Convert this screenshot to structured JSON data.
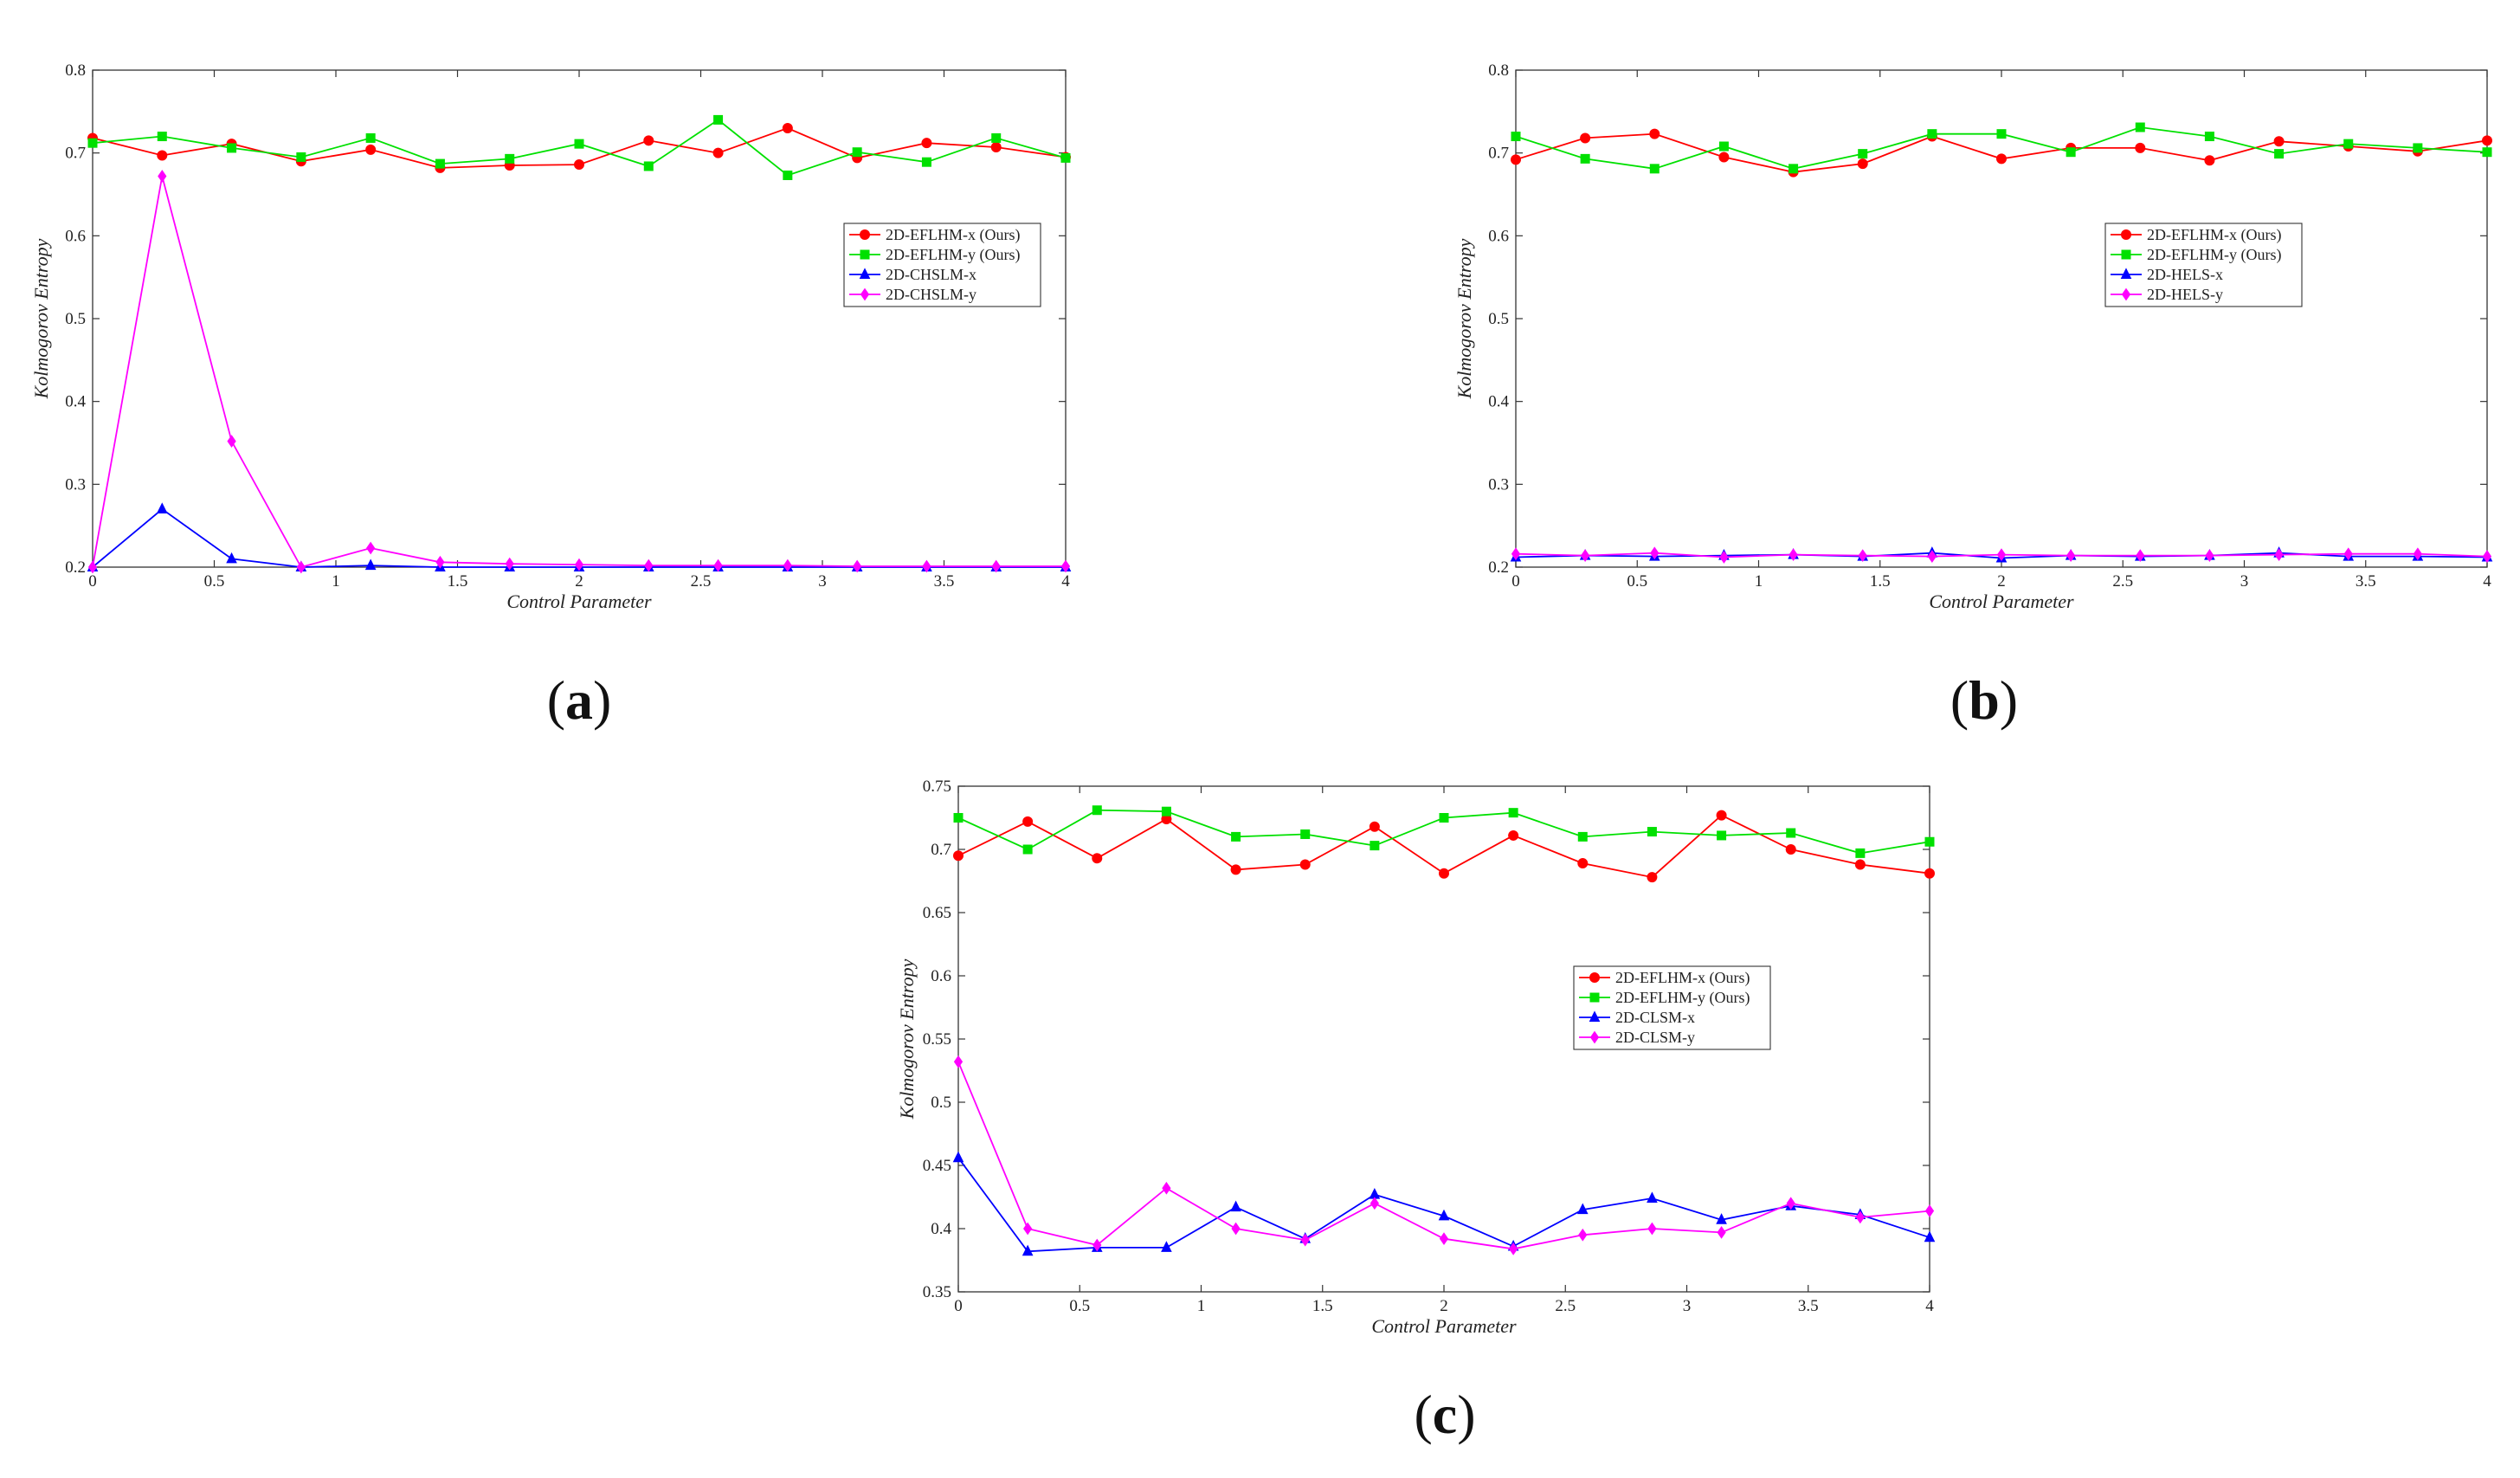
{
  "chart_data": [
    {
      "type": "line",
      "panel": "a",
      "caption_letter": "a",
      "xlabel": "Control Parameter",
      "ylabel": "Kolmogorov Entropy",
      "xlim": [
        0,
        4
      ],
      "ylim": [
        0.2,
        0.8
      ],
      "xticks": [
        0,
        0.5,
        1,
        1.5,
        2,
        2.5,
        3,
        3.5,
        4
      ],
      "xtick_labels": [
        "0",
        "0.5",
        "1",
        "1.5",
        "2",
        "2.5",
        "3",
        "3.5",
        "4"
      ],
      "yticks": [
        0.2,
        0.3,
        0.4,
        0.5,
        0.6,
        0.7,
        0.8
      ],
      "ytick_labels": [
        "0.2",
        "0.3",
        "0.4",
        "0.5",
        "0.6",
        "0.7",
        "0.8"
      ],
      "legend_position": "center-right",
      "x": [
        0,
        0.2857,
        0.5714,
        0.8571,
        1.1429,
        1.4286,
        1.7143,
        2,
        2.2857,
        2.5714,
        2.8571,
        3.1429,
        3.4286,
        3.7143,
        4
      ],
      "series": [
        {
          "name": "2D-EFLHM-x (Ours)",
          "color": "#ff0000",
          "marker": "circle",
          "values": [
            0.718,
            0.697,
            0.711,
            0.69,
            0.704,
            0.682,
            0.685,
            0.686,
            0.715,
            0.7,
            0.73,
            0.694,
            0.712,
            0.707,
            0.695
          ]
        },
        {
          "name": "2D-EFLHM-y (Ours)",
          "color": "#00e000",
          "marker": "square",
          "values": [
            0.712,
            0.72,
            0.706,
            0.695,
            0.718,
            0.687,
            0.693,
            0.711,
            0.684,
            0.74,
            0.673,
            0.701,
            0.689,
            0.718,
            0.694
          ]
        },
        {
          "name": "2D-CHSLM-x",
          "color": "#0000ff",
          "marker": "triangle",
          "values": [
            0.2,
            0.27,
            0.21,
            0.2,
            0.202,
            0.2,
            0.2,
            0.2,
            0.2,
            0.2,
            0.2,
            0.2,
            0.2,
            0.2,
            0.2
          ]
        },
        {
          "name": "2D-CHSLM-y",
          "color": "#ff00ff",
          "marker": "diamond",
          "values": [
            0.2,
            0.672,
            0.352,
            0.2,
            0.223,
            0.206,
            0.204,
            0.203,
            0.202,
            0.202,
            0.202,
            0.201,
            0.201,
            0.201,
            0.201
          ]
        }
      ]
    },
    {
      "type": "line",
      "panel": "b",
      "caption_letter": "b",
      "xlabel": "Control Parameter",
      "ylabel": "Kolmogorov Entropy",
      "xlim": [
        0,
        4
      ],
      "ylim": [
        0.2,
        0.8
      ],
      "xticks": [
        0,
        0.5,
        1,
        1.5,
        2,
        2.5,
        3,
        3.5,
        4
      ],
      "xtick_labels": [
        "0",
        "0.5",
        "1",
        "1.5",
        "2",
        "2.5",
        "3",
        "3.5",
        "4"
      ],
      "yticks": [
        0.2,
        0.3,
        0.4,
        0.5,
        0.6,
        0.7,
        0.8
      ],
      "ytick_labels": [
        "0.2",
        "0.3",
        "0.4",
        "0.5",
        "0.6",
        "0.7",
        "0.8"
      ],
      "legend_position": "center-right",
      "x": [
        0,
        0.2857,
        0.5714,
        0.8571,
        1.1429,
        1.4286,
        1.7143,
        2,
        2.2857,
        2.5714,
        2.8571,
        3.1429,
        3.4286,
        3.7143,
        4
      ],
      "series": [
        {
          "name": "2D-EFLHM-x (Ours)",
          "color": "#ff0000",
          "marker": "circle",
          "values": [
            0.692,
            0.718,
            0.723,
            0.695,
            0.677,
            0.687,
            0.72,
            0.693,
            0.706,
            0.706,
            0.691,
            0.714,
            0.708,
            0.702,
            0.715
          ]
        },
        {
          "name": "2D-EFLHM-y (Ours)",
          "color": "#00e000",
          "marker": "square",
          "values": [
            0.72,
            0.693,
            0.681,
            0.708,
            0.681,
            0.699,
            0.723,
            0.723,
            0.701,
            0.731,
            0.72,
            0.699,
            0.711,
            0.706,
            0.701
          ]
        },
        {
          "name": "2D-HELS-x",
          "color": "#0000ff",
          "marker": "triangle",
          "values": [
            0.212,
            0.214,
            0.213,
            0.214,
            0.215,
            0.213,
            0.217,
            0.211,
            0.214,
            0.213,
            0.214,
            0.217,
            0.213,
            0.213,
            0.212
          ]
        },
        {
          "name": "2D-HELS-y",
          "color": "#ff00ff",
          "marker": "diamond",
          "values": [
            0.216,
            0.214,
            0.217,
            0.212,
            0.215,
            0.214,
            0.213,
            0.215,
            0.214,
            0.214,
            0.214,
            0.215,
            0.216,
            0.216,
            0.213
          ]
        }
      ]
    },
    {
      "type": "line",
      "panel": "c",
      "caption_letter": "c",
      "xlabel": "Control Parameter",
      "ylabel": "Kolmogorov Entropy",
      "xlim": [
        0,
        4
      ],
      "ylim": [
        0.35,
        0.75
      ],
      "xticks": [
        0,
        0.5,
        1,
        1.5,
        2,
        2.5,
        3,
        3.5,
        4
      ],
      "xtick_labels": [
        "0",
        "0.5",
        "1",
        "1.5",
        "2",
        "2.5",
        "3",
        "3.5",
        "4"
      ],
      "yticks": [
        0.35,
        0.4,
        0.45,
        0.5,
        0.55,
        0.6,
        0.65,
        0.7,
        0.75
      ],
      "ytick_labels": [
        "0.35",
        "0.4",
        "0.45",
        "0.5",
        "0.55",
        "0.6",
        "0.65",
        "0.7",
        "0.75"
      ],
      "legend_position": "center-right",
      "x": [
        0,
        0.2857,
        0.5714,
        0.8571,
        1.1429,
        1.4286,
        1.7143,
        2,
        2.2857,
        2.5714,
        2.8571,
        3.1429,
        3.4286,
        3.7143,
        4
      ],
      "series": [
        {
          "name": "2D-EFLHM-x (Ours)",
          "color": "#ff0000",
          "marker": "circle",
          "values": [
            0.695,
            0.722,
            0.693,
            0.724,
            0.684,
            0.688,
            0.718,
            0.681,
            0.711,
            0.689,
            0.678,
            0.727,
            0.7,
            0.688,
            0.681
          ]
        },
        {
          "name": "2D-EFLHM-y (Ours)",
          "color": "#00e000",
          "marker": "square",
          "values": [
            0.725,
            0.7,
            0.731,
            0.73,
            0.71,
            0.712,
            0.703,
            0.725,
            0.729,
            0.71,
            0.714,
            0.711,
            0.713,
            0.697,
            0.706
          ]
        },
        {
          "name": "2D-CLSM-x",
          "color": "#0000ff",
          "marker": "triangle",
          "values": [
            0.456,
            0.382,
            0.385,
            0.385,
            0.417,
            0.392,
            0.427,
            0.41,
            0.386,
            0.415,
            0.424,
            0.407,
            0.418,
            0.411,
            0.393
          ]
        },
        {
          "name": "2D-CLSM-y",
          "color": "#ff00ff",
          "marker": "diamond",
          "values": [
            0.532,
            0.4,
            0.387,
            0.432,
            0.4,
            0.391,
            0.42,
            0.392,
            0.384,
            0.395,
            0.4,
            0.397,
            0.42,
            0.409,
            0.414
          ]
        }
      ]
    }
  ]
}
